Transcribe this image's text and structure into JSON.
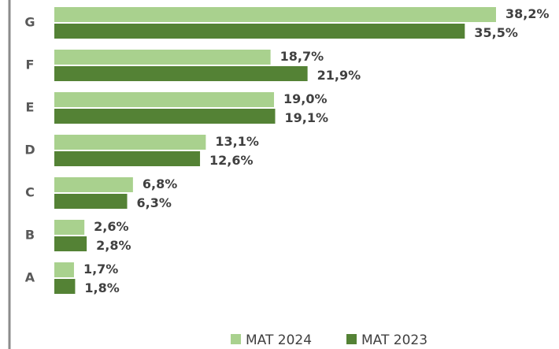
{
  "chart_data": {
    "type": "bar",
    "orientation": "horizontal",
    "categories": [
      "G",
      "F",
      "E",
      "D",
      "C",
      "B",
      "A"
    ],
    "series": [
      {
        "name": "MAT 2024",
        "color": "#a9d18e",
        "values": [
          38.2,
          18.7,
          19.0,
          13.1,
          6.8,
          2.6,
          1.7
        ],
        "value_labels": [
          "38,2%",
          "18,7%",
          "19,0%",
          "13,1%",
          "6,8%",
          "2,6%",
          "1,7%"
        ]
      },
      {
        "name": "MAT 2023",
        "color": "#548235",
        "values": [
          35.5,
          21.9,
          19.1,
          12.6,
          6.3,
          2.8,
          1.8
        ],
        "value_labels": [
          "35,5%",
          "21,9%",
          "19,1%",
          "12,6%",
          "6,3%",
          "2,8%",
          "1,8%"
        ]
      }
    ],
    "legend": "bottom"
  }
}
